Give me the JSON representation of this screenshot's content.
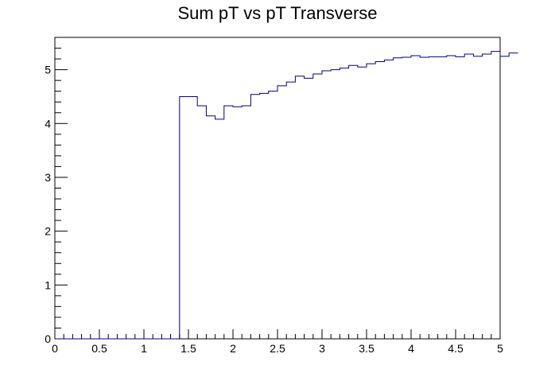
{
  "chart_data": {
    "type": "step-histogram",
    "title": "Sum pT vs pT Transverse",
    "xlabel": "",
    "ylabel": "",
    "xlim": [
      0,
      5
    ],
    "ylim": [
      0,
      5.6
    ],
    "x_ticks": [
      "0",
      "0.5",
      "1",
      "1.5",
      "2",
      "2.5",
      "3",
      "3.5",
      "4",
      "4.5",
      "5"
    ],
    "y_ticks": [
      "0",
      "1",
      "2",
      "3",
      "4",
      "5"
    ],
    "line_color": "#00008b",
    "grid": false,
    "legend": "none",
    "bin_width": 0.1,
    "values": [
      0,
      0,
      0,
      0,
      0,
      0,
      0,
      0,
      0,
      0,
      0,
      0,
      0,
      0,
      4.5,
      4.5,
      4.33,
      4.14,
      4.08,
      4.33,
      4.31,
      4.33,
      4.54,
      4.56,
      4.6,
      4.7,
      4.77,
      4.88,
      4.84,
      4.92,
      4.98,
      5.0,
      5.03,
      5.08,
      5.05,
      5.11,
      5.15,
      5.18,
      5.22,
      5.23,
      5.26,
      5.23,
      5.24,
      5.24,
      5.26,
      5.24,
      5.29,
      5.25,
      5.29,
      5.34,
      5.25,
      5.31
    ]
  }
}
